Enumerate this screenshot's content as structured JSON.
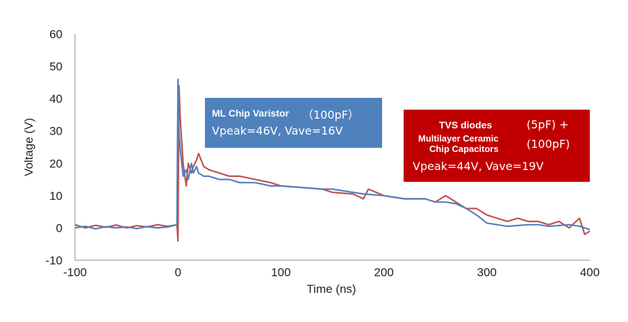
{
  "chart_data": {
    "type": "line",
    "xlabel": "Time (ns)",
    "ylabel": "Voltage (V)",
    "xlim": [
      -100,
      400
    ],
    "ylim": [
      -10,
      60
    ],
    "xticks": [
      "-100",
      "0",
      "100",
      "200",
      "300",
      "400"
    ],
    "yticks": [
      "-10",
      "0",
      "10",
      "20",
      "30",
      "40",
      "50",
      "60"
    ],
    "grid": false,
    "series": [
      {
        "color": "#4f81bd",
        "x": [
          -100,
          -90,
          -80,
          -70,
          -60,
          -50,
          -40,
          -30,
          -20,
          -10,
          -1,
          0,
          1,
          2,
          3,
          5,
          8,
          10,
          13,
          15,
          18,
          20,
          25,
          30,
          40,
          50,
          60,
          75,
          90,
          100,
          120,
          140,
          150,
          170,
          180,
          200,
          220,
          240,
          250,
          260,
          270,
          280,
          290,
          300,
          310,
          320,
          340,
          350,
          360,
          380,
          390,
          400
        ],
        "y": [
          0,
          0.5,
          -0.3,
          0.4,
          0,
          0.3,
          -0.2,
          0.4,
          0,
          0.3,
          1,
          46,
          30,
          25,
          22,
          16,
          18,
          15,
          20,
          17,
          19,
          17,
          16,
          16,
          15,
          15,
          14,
          14,
          13,
          13,
          12.5,
          12,
          12,
          11,
          10.5,
          10,
          9,
          9,
          8,
          8,
          7.5,
          6,
          4,
          1.5,
          1,
          0.5,
          1,
          1,
          0.5,
          1,
          0.5,
          -0.5
        ]
      },
      {
        "color": "#c0504d",
        "x": [
          -100,
          -90,
          -80,
          -70,
          -60,
          -50,
          -40,
          -30,
          -20,
          -10,
          -1,
          0,
          1,
          2,
          3,
          5,
          8,
          10,
          13,
          15,
          18,
          20,
          25,
          30,
          40,
          50,
          60,
          75,
          90,
          100,
          120,
          140,
          150,
          170,
          180,
          185,
          200,
          220,
          240,
          250,
          260,
          270,
          280,
          290,
          300,
          310,
          320,
          330,
          340,
          350,
          360,
          370,
          380,
          390,
          395,
          400
        ],
        "y": [
          1,
          0,
          0.8,
          0.2,
          0.9,
          0,
          0.7,
          0.3,
          1,
          0.5,
          1,
          -4,
          44,
          35,
          30,
          20,
          13,
          20,
          17,
          19,
          21,
          23,
          19,
          18,
          17,
          16,
          16,
          15,
          14,
          13,
          12.5,
          12,
          11,
          10.5,
          9,
          12,
          10,
          9,
          9,
          8,
          10,
          8,
          6,
          6,
          4,
          3,
          2,
          3,
          2,
          2,
          1,
          2,
          0,
          3,
          -2,
          -1
        ]
      }
    ],
    "annotations": [
      {
        "line1": "ML Chip Varistor",
        "line1b": "（100pF）",
        "line2": "Vpeak=46V, Vave=16V",
        "color": "#4f81bd"
      },
      {
        "line1": "TVS diodes",
        "line1b": "(5pF) +",
        "line2a": "Multilayer Ceramic",
        "line2b": "Chip Capacitors",
        "line2c": "(100pF)",
        "line3": "Vpeak=44V, Vave=19V",
        "color": "#c00000"
      }
    ]
  }
}
